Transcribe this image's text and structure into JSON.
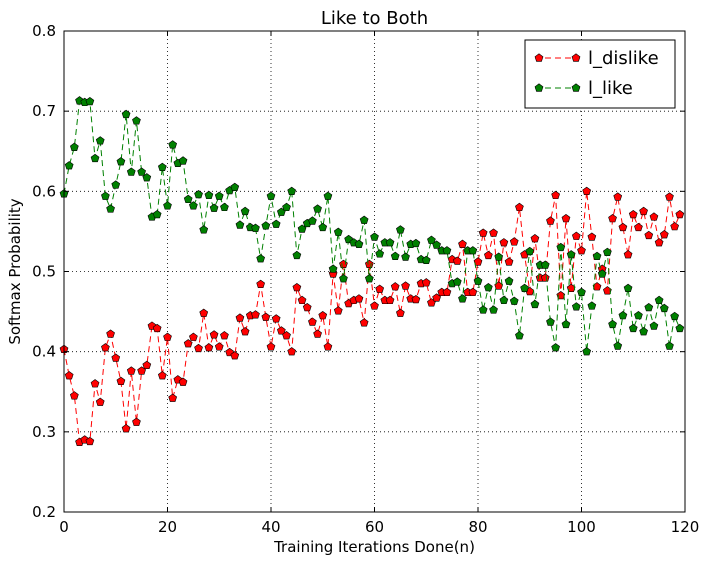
{
  "chart_data": {
    "type": "line",
    "title": "Like to Both",
    "xlabel": "Training Iterations Done(n)",
    "ylabel": "Softmax Probability",
    "xlim": [
      0,
      120
    ],
    "ylim": [
      0.2,
      0.8
    ],
    "xticks": [
      0,
      20,
      40,
      60,
      80,
      100,
      120
    ],
    "yticks": [
      0.2,
      0.3,
      0.4,
      0.5,
      0.6,
      0.7,
      0.8
    ],
    "xtick_labels": [
      "0",
      "20",
      "40",
      "60",
      "80",
      "100",
      "120"
    ],
    "ytick_labels": [
      "0.2",
      "0.3",
      "0.4",
      "0.5",
      "0.6",
      "0.7",
      "0.8"
    ],
    "grid": true,
    "legend_position": "top-right",
    "series": [
      {
        "name": "l_dislike",
        "color": "#ff0000",
        "marker": "pentagon",
        "linestyle": "dashed",
        "values": [
          0.403,
          0.37,
          0.345,
          0.287,
          0.29,
          0.288,
          0.36,
          0.337,
          0.405,
          0.422,
          0.392,
          0.363,
          0.304,
          0.376,
          0.312,
          0.376,
          0.383,
          0.432,
          0.429,
          0.37,
          0.418,
          0.342,
          0.365,
          0.362,
          0.41,
          0.418,
          0.404,
          0.448,
          0.405,
          0.421,
          0.406,
          0.42,
          0.399,
          0.395,
          0.442,
          0.425,
          0.445,
          0.446,
          0.484,
          0.443,
          0.406,
          0.441,
          0.426,
          0.42,
          0.4,
          0.48,
          0.464,
          0.455,
          0.437,
          0.422,
          0.445,
          0.406,
          0.497,
          0.451,
          0.509,
          0.46,
          0.464,
          0.466,
          0.436,
          0.509,
          0.457,
          0.478,
          0.464,
          0.464,
          0.481,
          0.448,
          0.482,
          0.466,
          0.465,
          0.485,
          0.486,
          0.461,
          0.467,
          0.474,
          0.474,
          0.515,
          0.513,
          0.534,
          0.474,
          0.474,
          0.512,
          0.548,
          0.52,
          0.548,
          0.482,
          0.536,
          0.512,
          0.537,
          0.58,
          0.521,
          0.475,
          0.541,
          0.492,
          0.492,
          0.563,
          0.595,
          0.47,
          0.566,
          0.479,
          0.544,
          0.526,
          0.6,
          0.543,
          0.481,
          0.503,
          0.476,
          0.566,
          0.593,
          0.555,
          0.521,
          0.571,
          0.555,
          0.575,
          0.545,
          0.568,
          0.536,
          0.546,
          0.593,
          0.556,
          0.571
        ]
      },
      {
        "name": "l_like",
        "color": "#008000",
        "marker": "pentagon",
        "linestyle": "dashed",
        "values": [
          0.597,
          0.632,
          0.655,
          0.713,
          0.711,
          0.712,
          0.641,
          0.663,
          0.594,
          0.578,
          0.608,
          0.637,
          0.696,
          0.624,
          0.688,
          0.624,
          0.617,
          0.568,
          0.571,
          0.63,
          0.582,
          0.658,
          0.635,
          0.638,
          0.59,
          0.582,
          0.596,
          0.552,
          0.595,
          0.579,
          0.594,
          0.58,
          0.601,
          0.605,
          0.558,
          0.575,
          0.555,
          0.554,
          0.516,
          0.557,
          0.594,
          0.559,
          0.574,
          0.58,
          0.6,
          0.52,
          0.553,
          0.56,
          0.563,
          0.578,
          0.555,
          0.594,
          0.503,
          0.549,
          0.491,
          0.54,
          0.536,
          0.534,
          0.564,
          0.491,
          0.543,
          0.522,
          0.536,
          0.536,
          0.519,
          0.552,
          0.518,
          0.534,
          0.535,
          0.515,
          0.514,
          0.539,
          0.533,
          0.526,
          0.526,
          0.485,
          0.487,
          0.466,
          0.526,
          0.526,
          0.488,
          0.452,
          0.48,
          0.452,
          0.518,
          0.464,
          0.488,
          0.463,
          0.42,
          0.479,
          0.525,
          0.459,
          0.508,
          0.508,
          0.437,
          0.405,
          0.53,
          0.434,
          0.521,
          0.456,
          0.474,
          0.4,
          0.457,
          0.519,
          0.497,
          0.524,
          0.434,
          0.407,
          0.445,
          0.479,
          0.429,
          0.445,
          0.425,
          0.455,
          0.432,
          0.464,
          0.454,
          0.407,
          0.444,
          0.429
        ]
      }
    ]
  }
}
